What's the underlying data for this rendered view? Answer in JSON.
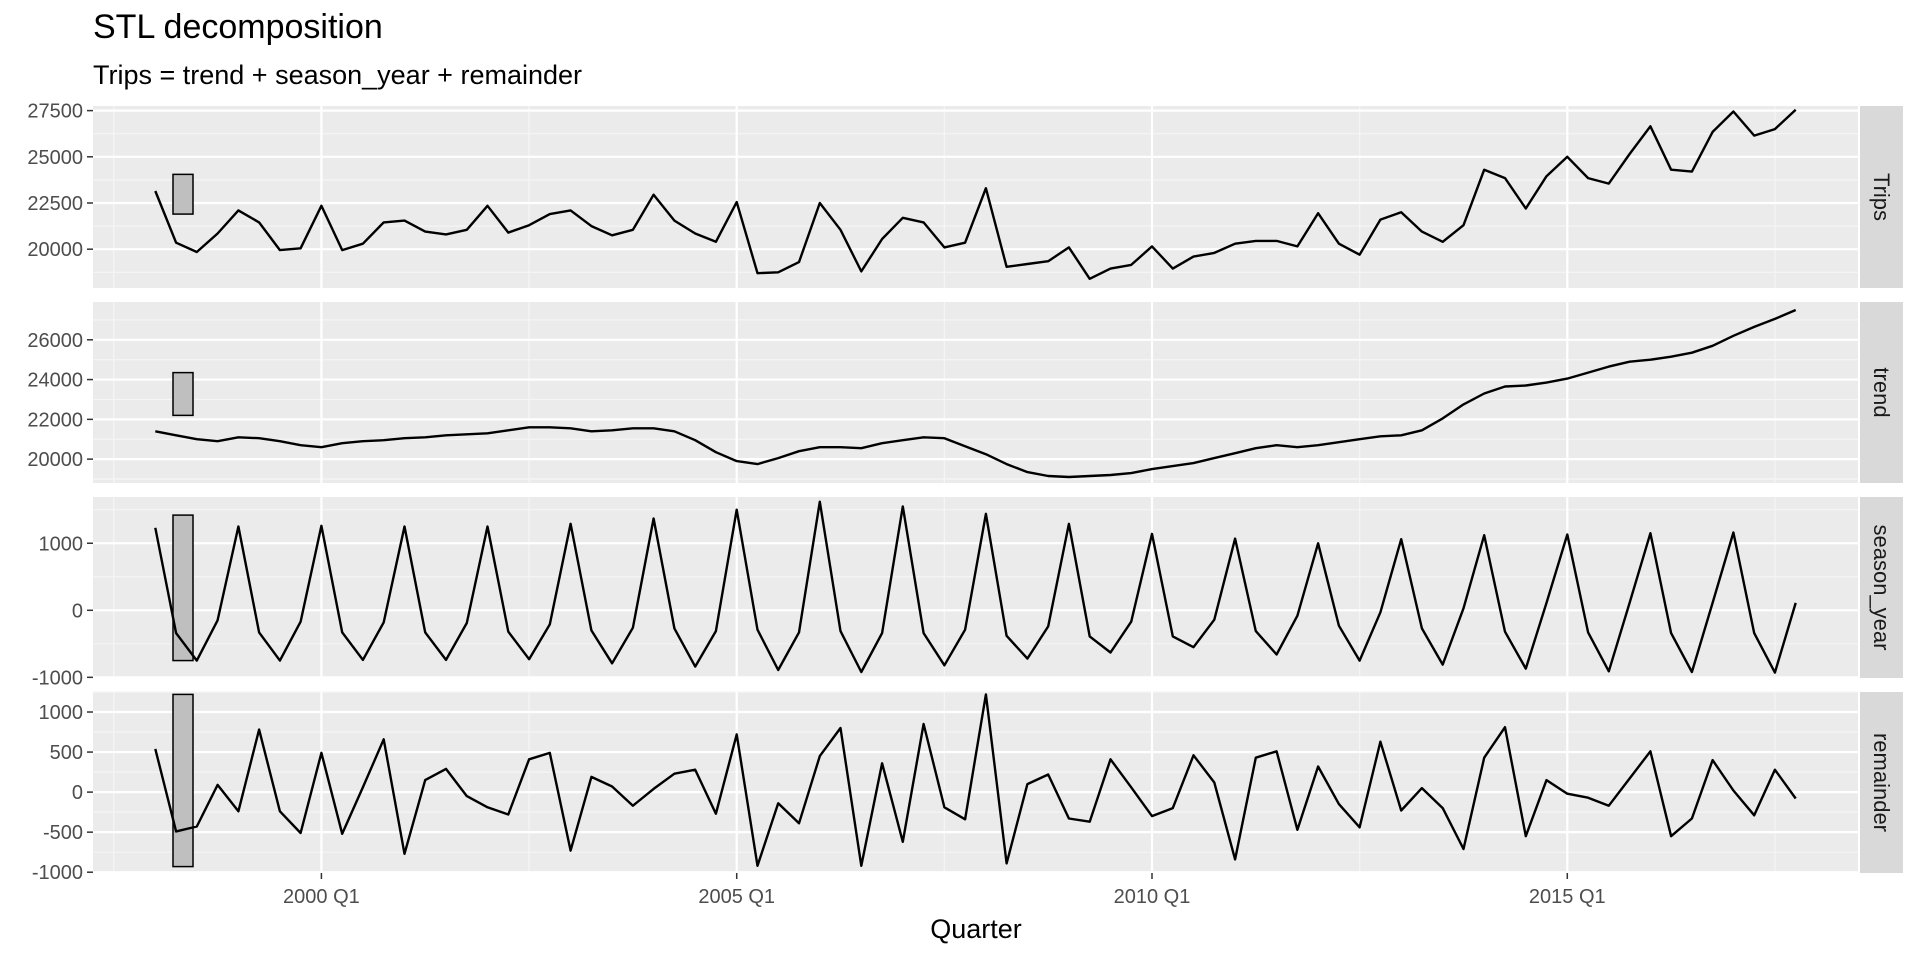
{
  "chart_data": {
    "type": "line",
    "title": "STL decomposition",
    "subtitle": "Trips = trend + season_year + remainder",
    "xlabel": "Quarter",
    "x_start": "1998 Q1",
    "x_end": "2017 Q4",
    "xlim": [
      "1997 Q2",
      "2018 Q3"
    ],
    "x_ticks": [
      "2000 Q1",
      "2005 Q1",
      "2010 Q1",
      "2015 Q1"
    ],
    "grid": true,
    "facets": [
      {
        "name": "Trips",
        "ylim": [
          17900,
          27750
        ],
        "y_ticks": [
          20000,
          22500,
          25000,
          27500
        ],
        "scale_bar": [
          21900,
          24050
        ],
        "values": [
          23150,
          20350,
          19850,
          20850,
          22100,
          21450,
          19950,
          20050,
          22350,
          19950,
          20300,
          21450,
          21550,
          20950,
          20800,
          21050,
          22350,
          20900,
          21300,
          21900,
          22100,
          21250,
          20750,
          21050,
          22950,
          21550,
          20850,
          20400,
          22550,
          18700,
          18750,
          19300,
          22500,
          21050,
          18800,
          20550,
          21700,
          21450,
          20100,
          20350,
          23300,
          19050,
          19200,
          19350,
          20100,
          18400,
          18950,
          19150,
          20150,
          18950,
          19600,
          19800,
          20300,
          20450,
          20450,
          20150,
          21950,
          20300,
          19700,
          21600,
          22000,
          20950,
          20400,
          21300,
          24300,
          23850,
          22200,
          23950,
          25000,
          23850,
          23550,
          25150,
          26650,
          24300,
          24200,
          26350,
          27450,
          26150,
          26500,
          27550
        ]
      },
      {
        "name": "trend",
        "ylim": [
          18800,
          27900
        ],
        "y_ticks": [
          20000,
          22000,
          24000,
          26000
        ],
        "scale_bar": [
          22200,
          24350
        ],
        "values": [
          21400,
          21200,
          21000,
          20900,
          21100,
          21050,
          20900,
          20700,
          20600,
          20800,
          20900,
          20950,
          21050,
          21100,
          21200,
          21250,
          21300,
          21450,
          21600,
          21600,
          21550,
          21400,
          21450,
          21550,
          21550,
          21400,
          20950,
          20350,
          19900,
          19750,
          20050,
          20400,
          20600,
          20600,
          20550,
          20800,
          20950,
          21100,
          21050,
          20650,
          20250,
          19750,
          19350,
          19150,
          19100,
          19150,
          19200,
          19300,
          19500,
          19650,
          19800,
          20050,
          20300,
          20550,
          20700,
          20600,
          20700,
          20850,
          21000,
          21150,
          21200,
          21450,
          22050,
          22750,
          23300,
          23650,
          23700,
          23850,
          24050,
          24350,
          24650,
          24900,
          25000,
          25150,
          25350,
          25700,
          26200,
          26650,
          27050,
          27500
        ]
      },
      {
        "name": "season_year",
        "ylim": [
          -1010,
          1690
        ],
        "y_ticks": [
          -1000,
          0,
          1000
        ],
        "scale_bar": [
          -750,
          1420
        ],
        "values": [
          1230,
          -340,
          -750,
          -150,
          1250,
          -330,
          -750,
          -170,
          1260,
          -330,
          -740,
          -180,
          1250,
          -330,
          -740,
          -190,
          1250,
          -320,
          -730,
          -210,
          1290,
          -300,
          -790,
          -260,
          1370,
          -270,
          -840,
          -310,
          1500,
          -290,
          -890,
          -330,
          1620,
          -310,
          -920,
          -340,
          1550,
          -340,
          -820,
          -290,
          1440,
          -380,
          -720,
          -240,
          1290,
          -390,
          -630,
          -170,
          1140,
          -390,
          -550,
          -140,
          1070,
          -310,
          -660,
          -80,
          1000,
          -230,
          -750,
          -30,
          1060,
          -270,
          -810,
          30,
          1120,
          -320,
          -870,
          110,
          1130,
          -330,
          -910,
          110,
          1150,
          -340,
          -920,
          110,
          1160,
          -340,
          -930,
          110
        ]
      },
      {
        "name": "remainder",
        "ylim": [
          -1010,
          1250
        ],
        "y_ticks": [
          -1000,
          -500,
          0,
          500,
          1000
        ],
        "scale_bar": [
          -930,
          1220
        ],
        "values": [
          540,
          -490,
          -430,
          90,
          -240,
          780,
          -240,
          -510,
          490,
          -520,
          60,
          660,
          -770,
          150,
          290,
          -50,
          -190,
          -280,
          410,
          490,
          -730,
          190,
          70,
          -170,
          40,
          230,
          280,
          -270,
          720,
          -920,
          -140,
          -390,
          450,
          800,
          -920,
          360,
          -620,
          850,
          -190,
          -340,
          1220,
          -890,
          100,
          220,
          -330,
          -370,
          410,
          60,
          -300,
          -200,
          460,
          120,
          -840,
          430,
          510,
          -470,
          320,
          -150,
          -440,
          630,
          -230,
          50,
          -200,
          -710,
          430,
          810,
          -550,
          150,
          -20,
          -70,
          -170,
          170,
          510,
          -550,
          -330,
          400,
          20,
          -290,
          280,
          -80
        ]
      }
    ]
  }
}
